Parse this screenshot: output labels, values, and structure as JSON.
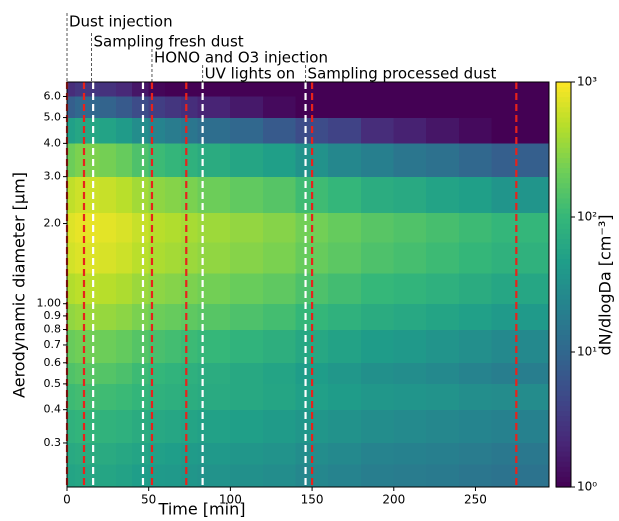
{
  "chart_data": {
    "type": "heatmap",
    "x_label": "Time [min]",
    "y_label": "Aerodynamic diameter [μm]",
    "colorbar_label": "dN/dlogDa [cm⁻³]",
    "colormap": "viridis",
    "zscale": "log",
    "zlim": [
      1,
      1000
    ],
    "zticks": [
      {
        "value": 1,
        "label": "10⁰"
      },
      {
        "value": 10,
        "label": "10¹"
      },
      {
        "value": 100,
        "label": "10²"
      },
      {
        "value": 1000,
        "label": "10³"
      }
    ],
    "xlim": [
      0,
      295
    ],
    "xticks": [
      0,
      50,
      100,
      150,
      200,
      250
    ],
    "yscale": "log",
    "ylim": [
      0.205,
      6.8
    ],
    "yticks": [
      0.3,
      0.4,
      0.5,
      0.6,
      0.7,
      0.8,
      0.9,
      {
        "value": 1,
        "label": "1.00"
      },
      {
        "value": 2,
        "label": "2.0"
      },
      {
        "value": 3,
        "label": "3.0"
      },
      {
        "value": 4,
        "label": "4.0"
      },
      {
        "value": 5,
        "label": "5.0"
      },
      {
        "value": 6,
        "label": "6.0"
      }
    ],
    "x_edges": [
      0,
      5,
      10,
      20,
      30,
      40,
      50,
      60,
      70,
      80,
      100,
      120,
      140,
      160,
      180,
      200,
      220,
      240,
      260,
      295
    ],
    "y_edges": [
      0.205,
      0.25,
      0.3,
      0.4,
      0.5,
      0.6,
      0.8,
      1.0,
      1.3,
      1.7,
      2.2,
      3.0,
      4.0,
      5.0,
      6.0,
      6.8
    ],
    "values": [
      [
        56,
        60,
        60,
        58,
        53,
        47,
        42,
        40,
        37,
        34,
        32,
        29,
        25,
        22,
        19,
        18,
        17,
        15,
        14
      ],
      [
        65,
        70,
        70,
        67,
        62,
        55,
        49,
        46,
        43,
        40,
        37,
        34,
        29,
        26,
        22,
        21,
        20,
        18,
        16
      ],
      [
        84,
        90,
        90,
        86,
        80,
        70,
        63,
        59,
        56,
        51,
        48,
        43,
        37,
        33,
        29,
        27,
        25,
        23,
        21
      ],
      [
        112,
        120,
        120,
        115,
        107,
        94,
        84,
        79,
        74,
        68,
        64,
        58,
        49,
        44,
        38,
        36,
        34,
        30,
        28
      ],
      [
        144,
        160,
        160,
        152,
        136,
        112,
        96,
        88,
        80,
        72,
        64,
        56,
        45,
        38,
        32,
        29,
        26,
        22,
        19
      ],
      [
        198,
        220,
        220,
        209,
        187,
        154,
        132,
        121,
        110,
        99,
        88,
        77,
        62,
        53,
        44,
        40,
        35,
        31,
        26
      ],
      [
        315,
        350,
        350,
        333,
        298,
        245,
        210,
        193,
        175,
        158,
        140,
        123,
        98,
        84,
        70,
        63,
        56,
        49,
        42
      ],
      [
        450,
        500,
        500,
        475,
        425,
        350,
        300,
        275,
        250,
        225,
        200,
        175,
        140,
        120,
        100,
        90,
        80,
        70,
        60
      ],
      [
        630,
        700,
        700,
        665,
        595,
        490,
        420,
        385,
        350,
        315,
        280,
        245,
        196,
        168,
        140,
        126,
        112,
        98,
        84
      ],
      [
        720,
        800,
        800,
        760,
        680,
        560,
        480,
        440,
        400,
        360,
        320,
        280,
        224,
        192,
        160,
        144,
        128,
        112,
        96
      ],
      [
        522,
        600,
        600,
        564,
        486,
        378,
        306,
        276,
        246,
        210,
        180,
        156,
        114,
        96,
        72,
        66,
        54,
        48,
        36
      ],
      [
        210,
        250,
        250,
        230,
        193,
        140,
        110,
        95,
        83,
        70,
        58,
        48,
        33,
        25,
        20,
        15,
        13,
        10,
        8
      ],
      [
        49,
        60,
        60,
        54,
        43,
        29,
        22,
        18,
        15,
        12,
        10,
        7,
        5,
        4,
        2.4,
        1.9,
        1.5,
        1.2,
        1
      ],
      [
        8,
        10,
        10,
        9,
        7,
        5,
        3.6,
        3,
        2.5,
        2,
        1.6,
        1.2,
        1,
        1,
        1,
        1,
        1,
        1,
        1
      ],
      [
        2.4,
        3,
        3,
        2.7,
        2.2,
        1.5,
        1.1,
        1,
        1,
        1,
        1,
        1,
        1,
        1,
        1,
        1,
        1,
        1,
        1
      ]
    ],
    "lines": [
      {
        "x": 0,
        "color": "#e8221b"
      },
      {
        "x": 10.4,
        "color": "#e8221b"
      },
      {
        "x": 16,
        "color": "#ffffff"
      },
      {
        "x": 46.5,
        "color": "#ffffff"
      },
      {
        "x": 52,
        "color": "#e8221b"
      },
      {
        "x": 73,
        "color": "#e8221b"
      },
      {
        "x": 83,
        "color": "#ffffff"
      },
      {
        "x": 146,
        "color": "#ffffff"
      },
      {
        "x": 150,
        "color": "#e8221b"
      },
      {
        "x": 275,
        "color": "#e8221b"
      }
    ],
    "annotations": [
      {
        "x": 0,
        "text": "Dust injection"
      },
      {
        "x": 15,
        "text": "Sampling fresh dust"
      },
      {
        "x": 52,
        "text": "HONO and O3 injection"
      },
      {
        "x": 83,
        "text": "UV lights on"
      },
      {
        "x": 146,
        "text": "Sampling processed dust"
      }
    ]
  }
}
